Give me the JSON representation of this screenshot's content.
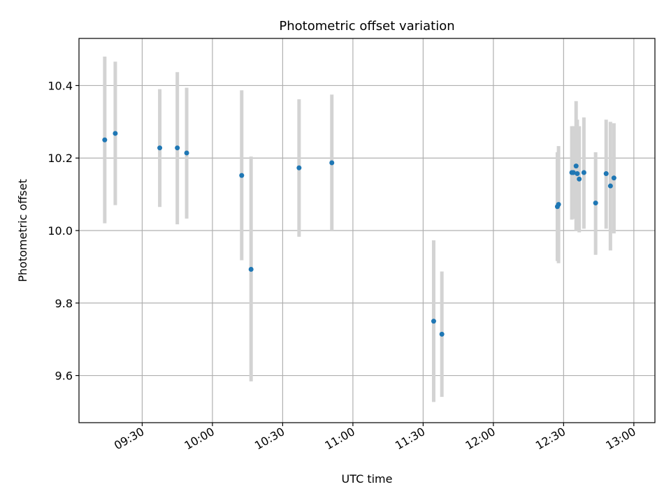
{
  "chart_data": {
    "type": "scatter",
    "title": "Photometric offset variation",
    "xlabel": "UTC time",
    "ylabel": "Photometric offset",
    "x_format": "HH:MM",
    "xlim": [
      "09:03",
      "13:09"
    ],
    "ylim": [
      9.47,
      10.53
    ],
    "x_ticks": [
      "09:30",
      "10:00",
      "10:30",
      "11:00",
      "11:30",
      "12:00",
      "12:30",
      "13:00"
    ],
    "y_ticks": [
      9.6,
      9.8,
      10.0,
      10.2,
      10.4
    ],
    "y_tick_labels": [
      "9.6",
      "9.8",
      "10.0",
      "10.2",
      "10.4"
    ],
    "grid": true,
    "colors": {
      "marker": "#1f77b4",
      "errorbar": "#d3d3d3",
      "grid": "#b0b0b0",
      "axes": "#000000"
    },
    "series": [
      {
        "points": [
          {
            "x": "09:14:00",
            "y": 10.25,
            "ylow": 10.02,
            "yhigh": 10.48
          },
          {
            "x": "09:18:30",
            "y": 10.268,
            "ylow": 10.07,
            "yhigh": 10.466
          },
          {
            "x": "09:37:30",
            "y": 10.228,
            "ylow": 10.065,
            "yhigh": 10.39
          },
          {
            "x": "09:45:00",
            "y": 10.228,
            "ylow": 10.017,
            "yhigh": 10.437
          },
          {
            "x": "09:49:00",
            "y": 10.214,
            "ylow": 10.033,
            "yhigh": 10.394
          },
          {
            "x": "10:12:30",
            "y": 10.152,
            "ylow": 9.918,
            "yhigh": 10.387
          },
          {
            "x": "10:16:30",
            "y": 9.893,
            "ylow": 9.584,
            "yhigh": 10.204
          },
          {
            "x": "10:37:00",
            "y": 10.173,
            "ylow": 9.983,
            "yhigh": 10.362
          },
          {
            "x": "10:51:00",
            "y": 10.187,
            "ylow": 10.0,
            "yhigh": 10.375
          },
          {
            "x": "11:34:30",
            "y": 9.75,
            "ylow": 9.527,
            "yhigh": 9.973
          },
          {
            "x": "11:38:00",
            "y": 9.714,
            "ylow": 9.541,
            "yhigh": 9.887
          },
          {
            "x": "12:27:20",
            "y": 10.066,
            "ylow": 9.916,
            "yhigh": 10.216
          },
          {
            "x": "12:27:50",
            "y": 10.072,
            "ylow": 9.91,
            "yhigh": 10.233
          },
          {
            "x": "12:33:30",
            "y": 10.16,
            "ylow": 10.03,
            "yhigh": 10.288
          },
          {
            "x": "12:34:10",
            "y": 10.16,
            "ylow": 10.032,
            "yhigh": 10.288
          },
          {
            "x": "12:35:20",
            "y": 10.178,
            "ylow": 9.998,
            "yhigh": 10.357
          },
          {
            "x": "12:35:50",
            "y": 10.157,
            "ylow": 10.0,
            "yhigh": 10.306
          },
          {
            "x": "12:36:40",
            "y": 10.142,
            "ylow": 9.995,
            "yhigh": 10.288
          },
          {
            "x": "12:38:40",
            "y": 10.16,
            "ylow": 10.005,
            "yhigh": 10.312
          },
          {
            "x": "12:43:40",
            "y": 10.076,
            "ylow": 9.933,
            "yhigh": 10.216
          },
          {
            "x": "12:48:10",
            "y": 10.157,
            "ylow": 10.005,
            "yhigh": 10.306
          },
          {
            "x": "12:50:00",
            "y": 10.123,
            "ylow": 9.945,
            "yhigh": 10.3
          },
          {
            "x": "12:51:30",
            "y": 10.145,
            "ylow": 9.992,
            "yhigh": 10.296
          }
        ]
      }
    ]
  }
}
